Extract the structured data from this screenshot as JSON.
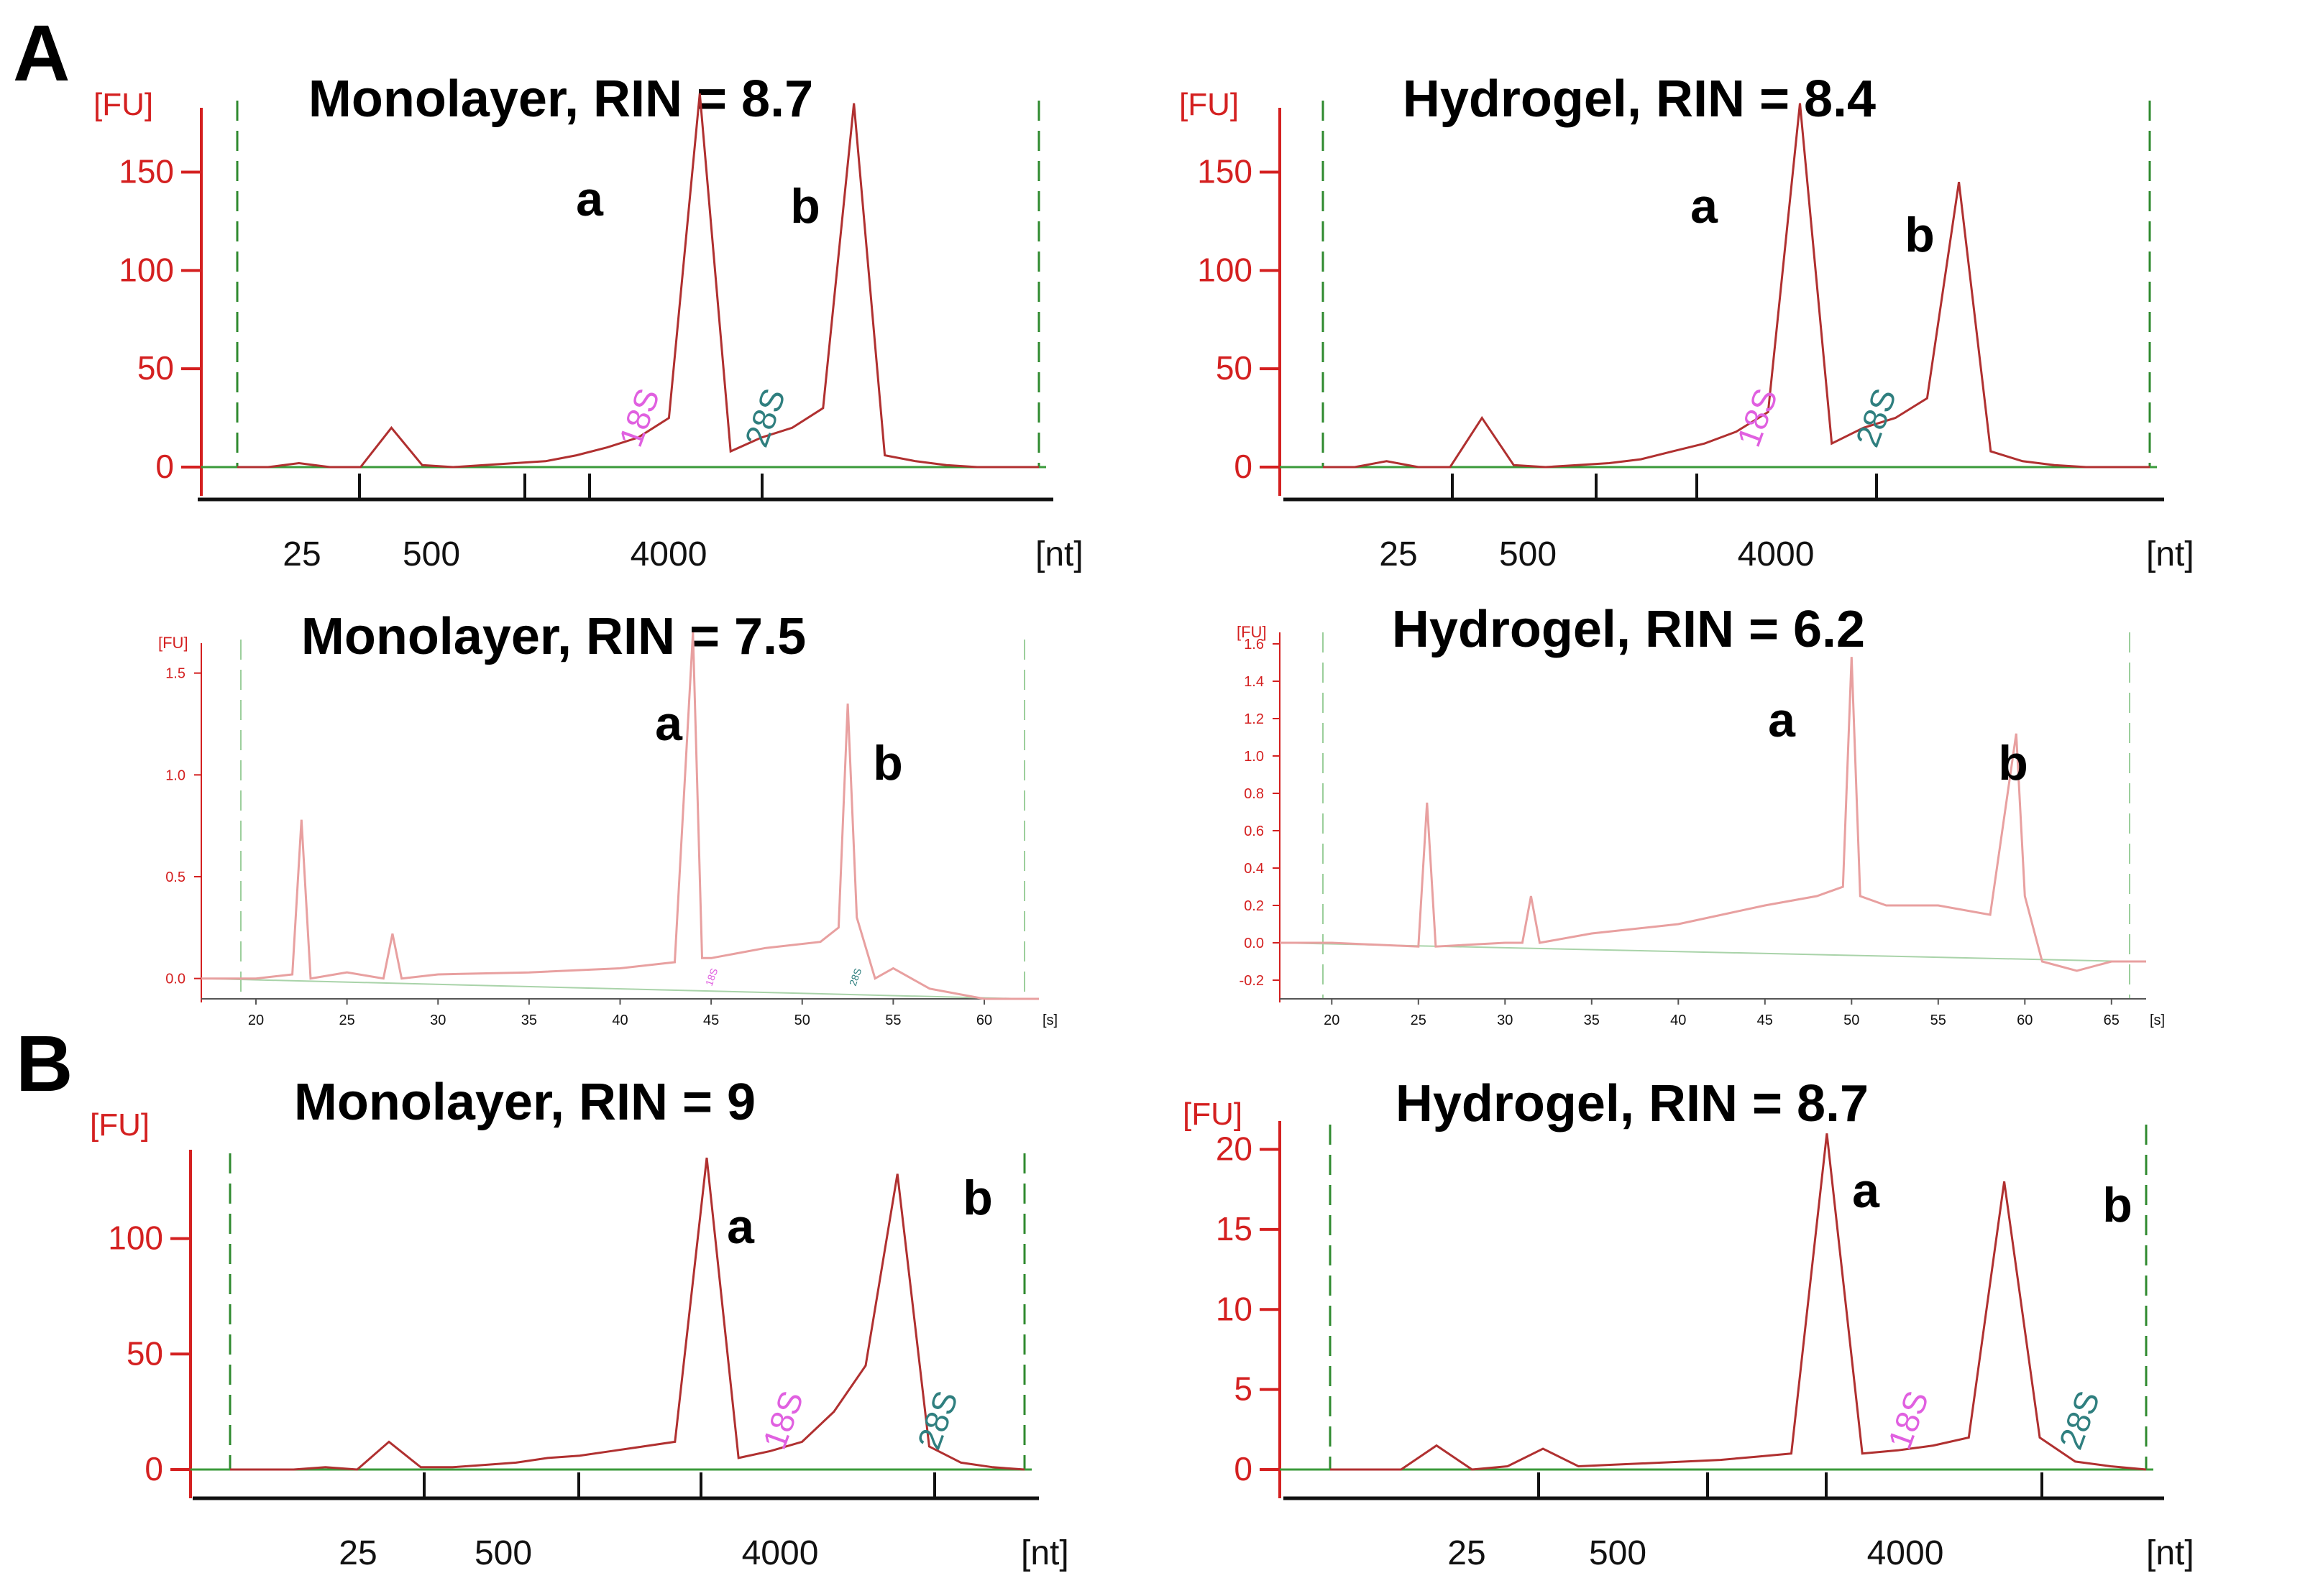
{
  "figure": {
    "panel_labels": [
      "A",
      "B"
    ]
  },
  "colors": {
    "axis_y": "#d42020",
    "trace": "#b03030",
    "trace_light": "#e8a0a0",
    "baseline": "#3a9a3a",
    "marker_dashed": "#2f8a2f",
    "label_18s": "#e060e0",
    "label_28s": "#2f7f7f"
  },
  "chart_data": [
    {
      "type": "line",
      "title": "Monolayer, RIN = 8.7",
      "ylabel": "[FU]",
      "xlabel": "[nt]",
      "ylim": [
        0,
        190
      ],
      "yticks": [
        0,
        50,
        100,
        150
      ],
      "xticks": [
        "25",
        "500",
        "4000"
      ],
      "peak_labels": [
        "a",
        "b"
      ],
      "marker_labels": [
        "18S",
        "28S"
      ],
      "series": [
        {
          "values": [
            0,
            0,
            2,
            0,
            0,
            20,
            1,
            0,
            1,
            2,
            3,
            6,
            10,
            15,
            25,
            190,
            8,
            15,
            20,
            30,
            185,
            6,
            3,
            1,
            0,
            0,
            0
          ]
        }
      ]
    },
    {
      "type": "line",
      "title": "Hydrogel, RIN = 8.4",
      "ylabel": "[FU]",
      "xlabel": "[nt]",
      "ylim": [
        0,
        190
      ],
      "yticks": [
        0,
        50,
        100,
        150
      ],
      "xticks": [
        "25",
        "500",
        "4000"
      ],
      "peak_labels": [
        "a",
        "b"
      ],
      "marker_labels": [
        "18S",
        "28S"
      ],
      "series": [
        {
          "values": [
            0,
            0,
            3,
            0,
            0,
            25,
            1,
            0,
            1,
            2,
            4,
            8,
            12,
            18,
            28,
            185,
            12,
            20,
            25,
            35,
            145,
            8,
            3,
            1,
            0,
            0,
            0
          ]
        }
      ]
    },
    {
      "type": "line",
      "title": "Monolayer, RIN = 7.5",
      "ylabel": "[FU]",
      "xlabel": "[s]",
      "ylim": [
        -0.1,
        1.7
      ],
      "yticks": [
        "0.0",
        "0.5",
        "1.0",
        "1.5"
      ],
      "xticks": [
        "20",
        "25",
        "30",
        "35",
        "40",
        "45",
        "50",
        "55",
        "60"
      ],
      "peak_labels": [
        "a",
        "b"
      ],
      "marker_labels": [
        "18S",
        "28S"
      ],
      "x": [
        17,
        20,
        22,
        22.5,
        23,
        25,
        27,
        27.5,
        28,
        30,
        35,
        40,
        43,
        44,
        44.5,
        45,
        48,
        51,
        52,
        52.5,
        53,
        54,
        55,
        57,
        60,
        63
      ],
      "series": [
        {
          "values": [
            0.0,
            0.0,
            0.02,
            0.78,
            0.0,
            0.03,
            0.0,
            0.22,
            0.0,
            0.02,
            0.03,
            0.05,
            0.08,
            1.7,
            0.1,
            0.1,
            0.15,
            0.18,
            0.25,
            1.35,
            0.3,
            0.0,
            0.05,
            -0.05,
            -0.1,
            -0.1
          ]
        }
      ]
    },
    {
      "type": "line",
      "title": "Hydrogel, RIN = 6.2",
      "ylabel": "[FU]",
      "xlabel": "[s]",
      "ylim": [
        -0.3,
        1.7
      ],
      "yticks": [
        "-0.2",
        "0.0",
        "0.2",
        "0.4",
        "0.6",
        "0.8",
        "1.0",
        "1.2",
        "1.4",
        "1.6"
      ],
      "xticks": [
        "20",
        "25",
        "30",
        "35",
        "40",
        "45",
        "50",
        "55",
        "60",
        "65"
      ],
      "peak_labels": [
        "a",
        "b"
      ],
      "marker_labels": [],
      "x": [
        17,
        20,
        25,
        25.5,
        26,
        30,
        31,
        31.5,
        32,
        35,
        40,
        45,
        48,
        49.5,
        50,
        50.5,
        52,
        55,
        58,
        59.5,
        60,
        61,
        63,
        65,
        67
      ],
      "series": [
        {
          "values": [
            0.0,
            0.0,
            -0.02,
            0.75,
            -0.02,
            0.0,
            0.0,
            0.25,
            0.0,
            0.05,
            0.1,
            0.2,
            0.25,
            0.3,
            1.53,
            0.25,
            0.2,
            0.2,
            0.15,
            1.12,
            0.25,
            -0.1,
            -0.15,
            -0.1,
            -0.1
          ]
        }
      ]
    },
    {
      "type": "line",
      "title": "Monolayer, RIN = 9",
      "ylabel": "[FU]",
      "xlabel": "[nt]",
      "ylim": [
        0,
        140
      ],
      "yticks": [
        0,
        50,
        100
      ],
      "xticks": [
        "25",
        "500",
        "4000"
      ],
      "peak_labels": [
        "a",
        "b"
      ],
      "marker_labels": [
        "18S",
        "28S"
      ],
      "series": [
        {
          "values": [
            0,
            0,
            0,
            1,
            0,
            12,
            1,
            1,
            2,
            3,
            5,
            6,
            8,
            10,
            12,
            135,
            5,
            8,
            12,
            25,
            45,
            128,
            10,
            3,
            1,
            0
          ]
        }
      ]
    },
    {
      "type": "line",
      "title": "Hydrogel, RIN = 8.7",
      "ylabel": "[FU]",
      "xlabel": "[nt]",
      "ylim": [
        0,
        22
      ],
      "yticks": [
        0,
        5,
        10,
        15,
        20
      ],
      "xticks": [
        "25",
        "500",
        "4000"
      ],
      "peak_labels": [
        "a",
        "b"
      ],
      "marker_labels": [
        "18S",
        "28S"
      ],
      "series": [
        {
          "values": [
            0,
            0,
            0,
            1.5,
            0,
            0.2,
            1.3,
            0.2,
            0.3,
            0.4,
            0.5,
            0.6,
            0.8,
            1.0,
            21.0,
            1.0,
            1.2,
            1.5,
            2.0,
            18.0,
            2.0,
            0.5,
            0.2,
            0
          ]
        }
      ]
    }
  ]
}
